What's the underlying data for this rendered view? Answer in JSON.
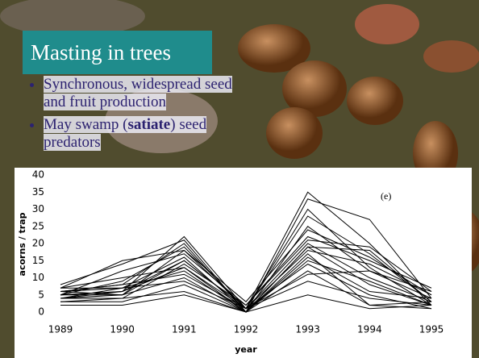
{
  "slide": {
    "title": "Masting in trees",
    "bullets": [
      [
        "Synchronous, widespread seed and fruit production"
      ],
      [
        "May swamp (",
        "satiate",
        ") seed predators"
      ]
    ]
  },
  "chart_data": {
    "type": "line",
    "annotation": "(e)",
    "x_label": "year",
    "y_label": "acorns / trap",
    "color": "#000000",
    "x": [
      1989,
      1990,
      1991,
      1992,
      1993,
      1994,
      1995
    ],
    "xlim": [
      1989,
      1995
    ],
    "xticks": [
      1989,
      1990,
      1991,
      1992,
      1993,
      1994,
      1995
    ],
    "ylim": [
      0,
      40
    ],
    "yticks": [
      0,
      5,
      10,
      15,
      20,
      25,
      30,
      35,
      40
    ],
    "grid": false,
    "series": [
      {
        "values": [
          5,
          6,
          22,
          1,
          35,
          20,
          2
        ]
      },
      {
        "values": [
          6,
          8,
          20,
          0,
          33,
          27,
          4
        ]
      },
      {
        "values": [
          4,
          5,
          18,
          1,
          28,
          17,
          3
        ]
      },
      {
        "values": [
          7,
          7,
          16,
          0,
          25,
          12,
          6
        ]
      },
      {
        "values": [
          3,
          4,
          14,
          2,
          22,
          15,
          7
        ]
      },
      {
        "values": [
          5,
          9,
          19,
          1,
          20,
          10,
          3
        ]
      },
      {
        "values": [
          6,
          7,
          12,
          0,
          19,
          8,
          2
        ]
      },
      {
        "values": [
          4,
          6,
          15,
          1,
          18,
          14,
          5
        ]
      },
      {
        "values": [
          8,
          14,
          21,
          0,
          17,
          2,
          1
        ]
      },
      {
        "values": [
          5,
          5,
          10,
          0,
          16,
          6,
          4
        ]
      },
      {
        "values": [
          3,
          3,
          8,
          0,
          15,
          9,
          2
        ]
      },
      {
        "values": [
          7,
          10,
          13,
          1,
          14,
          5,
          1
        ]
      },
      {
        "values": [
          4,
          4,
          6,
          0,
          12,
          2,
          3
        ]
      },
      {
        "values": [
          5,
          12,
          17,
          2,
          21,
          19,
          6
        ]
      },
      {
        "values": [
          6,
          8,
          11,
          1,
          9,
          4,
          2
        ]
      },
      {
        "values": [
          2,
          2,
          5,
          0,
          5,
          1,
          2
        ]
      },
      {
        "values": [
          7,
          15,
          18,
          3,
          24,
          16,
          5
        ]
      },
      {
        "values": [
          4,
          7,
          9,
          1,
          11,
          12,
          4
        ]
      },
      {
        "values": [
          5,
          6,
          13,
          0,
          19,
          18,
          3
        ]
      },
      {
        "values": [
          6,
          5,
          15,
          1,
          30,
          13,
          2
        ]
      }
    ]
  }
}
